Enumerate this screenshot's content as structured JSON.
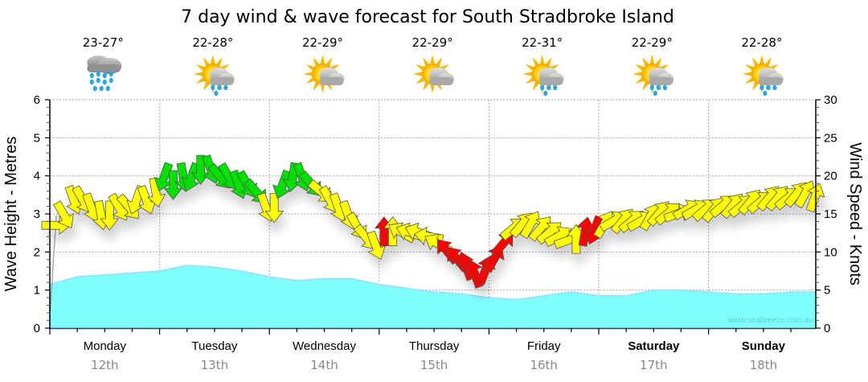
{
  "chart_data": {
    "type": "line",
    "title": "7 day wind & wave forecast for South Stradbroke Island",
    "ylabel": "Wave Height - Metres",
    "y2label": "Wind Speed - Knots",
    "ylim": [
      0,
      6
    ],
    "y2lim": [
      0,
      30
    ],
    "yticks": [
      "0",
      "1",
      "2",
      "3",
      "4",
      "5",
      "6"
    ],
    "y2ticks": [
      "0",
      "5",
      "10",
      "15",
      "20",
      "25",
      "30"
    ],
    "grid": true,
    "watermark": "www.seabreeze.com.au",
    "days": [
      {
        "name": "Monday",
        "date": "12th",
        "temp": "23-27°",
        "icon": "rain-cloud-icon",
        "bold": false
      },
      {
        "name": "Tuesday",
        "date": "13th",
        "temp": "22-28°",
        "icon": "sun-cloud-rain-icon",
        "bold": false
      },
      {
        "name": "Wednesday",
        "date": "14th",
        "temp": "22-29°",
        "icon": "sun-cloud-icon",
        "bold": false
      },
      {
        "name": "Thursday",
        "date": "15th",
        "temp": "22-29°",
        "icon": "sun-cloud-icon",
        "bold": false
      },
      {
        "name": "Friday",
        "date": "16th",
        "temp": "22-31°",
        "icon": "sun-cloud-rain-icon",
        "bold": false
      },
      {
        "name": "Saturday",
        "date": "17th",
        "temp": "22-29°",
        "icon": "sun-cloud-rain-icon",
        "bold": true
      },
      {
        "name": "Sunday",
        "date": "18th",
        "temp": "22-28°",
        "icon": "sun-cloud-rain-icon",
        "bold": true
      }
    ],
    "wave_series": {
      "name": "Wave Height",
      "unit": "metres",
      "color": "#80ffff",
      "x_days": [
        0,
        0.25,
        0.5,
        0.75,
        1,
        1.25,
        1.5,
        1.75,
        2,
        2.25,
        2.5,
        2.75,
        3,
        3.25,
        3.5,
        3.75,
        4,
        4.25,
        4.5,
        4.75,
        5,
        5.25,
        5.5,
        5.75,
        6,
        6.25,
        6.5,
        6.75,
        6.97
      ],
      "values": [
        1.15,
        1.35,
        1.4,
        1.45,
        1.5,
        1.65,
        1.6,
        1.5,
        1.35,
        1.25,
        1.3,
        1.3,
        1.15,
        1.05,
        0.95,
        0.9,
        0.8,
        0.75,
        0.85,
        0.95,
        0.85,
        0.85,
        1.0,
        1.0,
        0.95,
        0.9,
        0.9,
        0.95,
        0.95
      ]
    },
    "wind_series": {
      "name": "Wind Speed",
      "unit": "knots",
      "colors": {
        "light": "#ffff00",
        "moderate": "#00e000",
        "strong": "#ff0000"
      },
      "x_days": [
        0,
        0.08,
        0.17,
        0.25,
        0.33,
        0.42,
        0.5,
        0.58,
        0.67,
        0.75,
        0.83,
        0.92,
        1.0,
        1.08,
        1.17,
        1.25,
        1.33,
        1.42,
        1.5,
        1.58,
        1.67,
        1.75,
        1.83,
        1.92,
        2.0,
        2.08,
        2.17,
        2.25,
        2.33,
        2.42,
        2.5,
        2.58,
        2.67,
        2.75,
        2.83,
        2.92,
        3.0,
        3.08,
        3.17,
        3.25,
        3.33,
        3.42,
        3.5,
        3.58,
        3.67,
        3.75,
        3.83,
        3.92,
        4.0,
        4.08,
        4.17,
        4.25,
        4.33,
        4.42,
        4.5,
        4.58,
        4.67,
        4.75,
        4.83,
        4.92,
        5.0,
        5.08,
        5.17,
        5.25,
        5.33,
        5.42,
        5.5,
        5.58,
        5.67,
        5.75,
        5.83,
        5.92,
        6.0,
        6.08,
        6.17,
        6.25,
        6.33,
        6.42,
        6.5,
        6.58,
        6.67,
        6.75,
        6.83,
        6.92
      ],
      "values": [
        13.5,
        15,
        17,
        17,
        16,
        15,
        15,
        16,
        16,
        17,
        17,
        18,
        20,
        19,
        20,
        20,
        21,
        21,
        20,
        20,
        19,
        19,
        18,
        16,
        16,
        19,
        20,
        20,
        19,
        18,
        17,
        16,
        15,
        13.5,
        12,
        11,
        12.5,
        12.5,
        12.5,
        12.5,
        12.5,
        12,
        11,
        10,
        9,
        8,
        7,
        7.5,
        9,
        11,
        13,
        13.5,
        13.5,
        13,
        12.5,
        12,
        11.5,
        11.5,
        12.5,
        13,
        13.5,
        14,
        14,
        14,
        14,
        14.5,
        15,
        15,
        15,
        15.5,
        15.5,
        15.5,
        15.5,
        16,
        16,
        16,
        16.5,
        16.5,
        17,
        17,
        17,
        17.5,
        17.5,
        17
      ],
      "directions_deg": [
        90,
        150,
        160,
        150,
        160,
        170,
        180,
        150,
        140,
        200,
        160,
        170,
        200,
        180,
        170,
        200,
        180,
        160,
        140,
        150,
        160,
        150,
        140,
        160,
        180,
        200,
        190,
        160,
        140,
        130,
        150,
        160,
        160,
        150,
        140,
        160,
        0,
        0,
        300,
        290,
        290,
        280,
        300,
        320,
        320,
        340,
        340,
        20,
        30,
        40,
        50,
        40,
        30,
        40,
        50,
        60,
        70,
        0,
        10,
        200,
        30,
        60,
        40,
        50,
        60,
        30,
        40,
        50,
        70,
        60,
        60,
        50,
        40,
        50,
        40,
        50,
        40,
        50,
        40,
        40,
        50,
        40,
        30,
        20
      ],
      "category": [
        "light",
        "light",
        "light",
        "light",
        "light",
        "light",
        "light",
        "light",
        "light",
        "light",
        "light",
        "light",
        "moderate",
        "moderate",
        "moderate",
        "moderate",
        "moderate",
        "moderate",
        "moderate",
        "moderate",
        "moderate",
        "moderate",
        "moderate",
        "light",
        "light",
        "moderate",
        "moderate",
        "moderate",
        "moderate",
        "light",
        "light",
        "light",
        "light",
        "light",
        "light",
        "light",
        "strong",
        "light",
        "light",
        "light",
        "light",
        "light",
        "light",
        "strong",
        "strong",
        "strong",
        "strong",
        "strong",
        "strong",
        "strong",
        "light",
        "light",
        "light",
        "light",
        "light",
        "light",
        "light",
        "light",
        "strong",
        "strong",
        "light",
        "light",
        "light",
        "light",
        "light",
        "light",
        "light",
        "light",
        "light",
        "light",
        "light",
        "light",
        "light",
        "light",
        "light",
        "light",
        "light",
        "light",
        "light",
        "light",
        "light",
        "light",
        "light",
        "light"
      ]
    }
  }
}
